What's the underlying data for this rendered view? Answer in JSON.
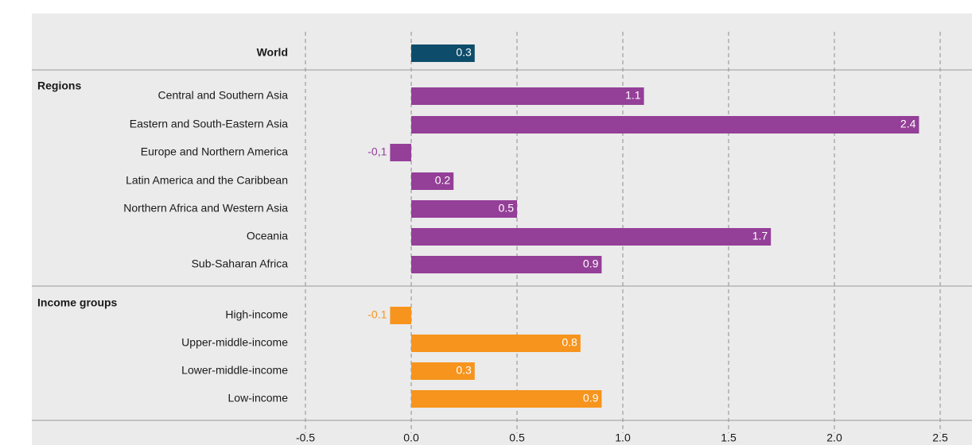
{
  "chart_data": {
    "type": "bar",
    "orientation": "horizontal",
    "xlim": [
      -0.5,
      2.5
    ],
    "xticks": [
      "-0.5",
      "0.0",
      "0.5",
      "1.0",
      "1.5",
      "2.0",
      "2.5"
    ],
    "xtick_values": [
      -0.5,
      0.0,
      0.5,
      1.0,
      1.5,
      2.0,
      2.5
    ],
    "grid": "vertical dashed",
    "colors": {
      "world": "#0d4d6b",
      "regions": "#943f98",
      "income": "#f7941d",
      "background": "#ebebeb"
    },
    "groups": [
      {
        "key": "world",
        "label": "",
        "items": [
          {
            "category": "World",
            "value": 0.3,
            "label": "0.3",
            "bold": true
          }
        ]
      },
      {
        "key": "regions",
        "label": "Regions",
        "items": [
          {
            "category": "Central and Southern Asia",
            "value": 1.1,
            "label": "1.1"
          },
          {
            "category": "Eastern and South-Eastern Asia",
            "value": 2.4,
            "label": "2.4"
          },
          {
            "category": "Europe and Northern America",
            "value": -0.1,
            "label": "-0,1"
          },
          {
            "category": "Latin America and the Caribbean",
            "value": 0.2,
            "label": "0.2"
          },
          {
            "category": "Northern Africa and Western Asia",
            "value": 0.5,
            "label": "0.5"
          },
          {
            "category": "Oceania",
            "value": 1.7,
            "label": "1.7"
          },
          {
            "category": "Sub-Saharan Africa",
            "value": 0.9,
            "label": "0.9"
          }
        ]
      },
      {
        "key": "income",
        "label": "Income groups",
        "items": [
          {
            "category": "High-income",
            "value": -0.1,
            "label": "-0.1"
          },
          {
            "category": "Upper-middle-income",
            "value": 0.8,
            "label": "0.8"
          },
          {
            "category": "Lower-middle-income",
            "value": 0.3,
            "label": "0.3"
          },
          {
            "category": "Low-income",
            "value": 0.9,
            "label": "0.9"
          }
        ]
      }
    ]
  }
}
